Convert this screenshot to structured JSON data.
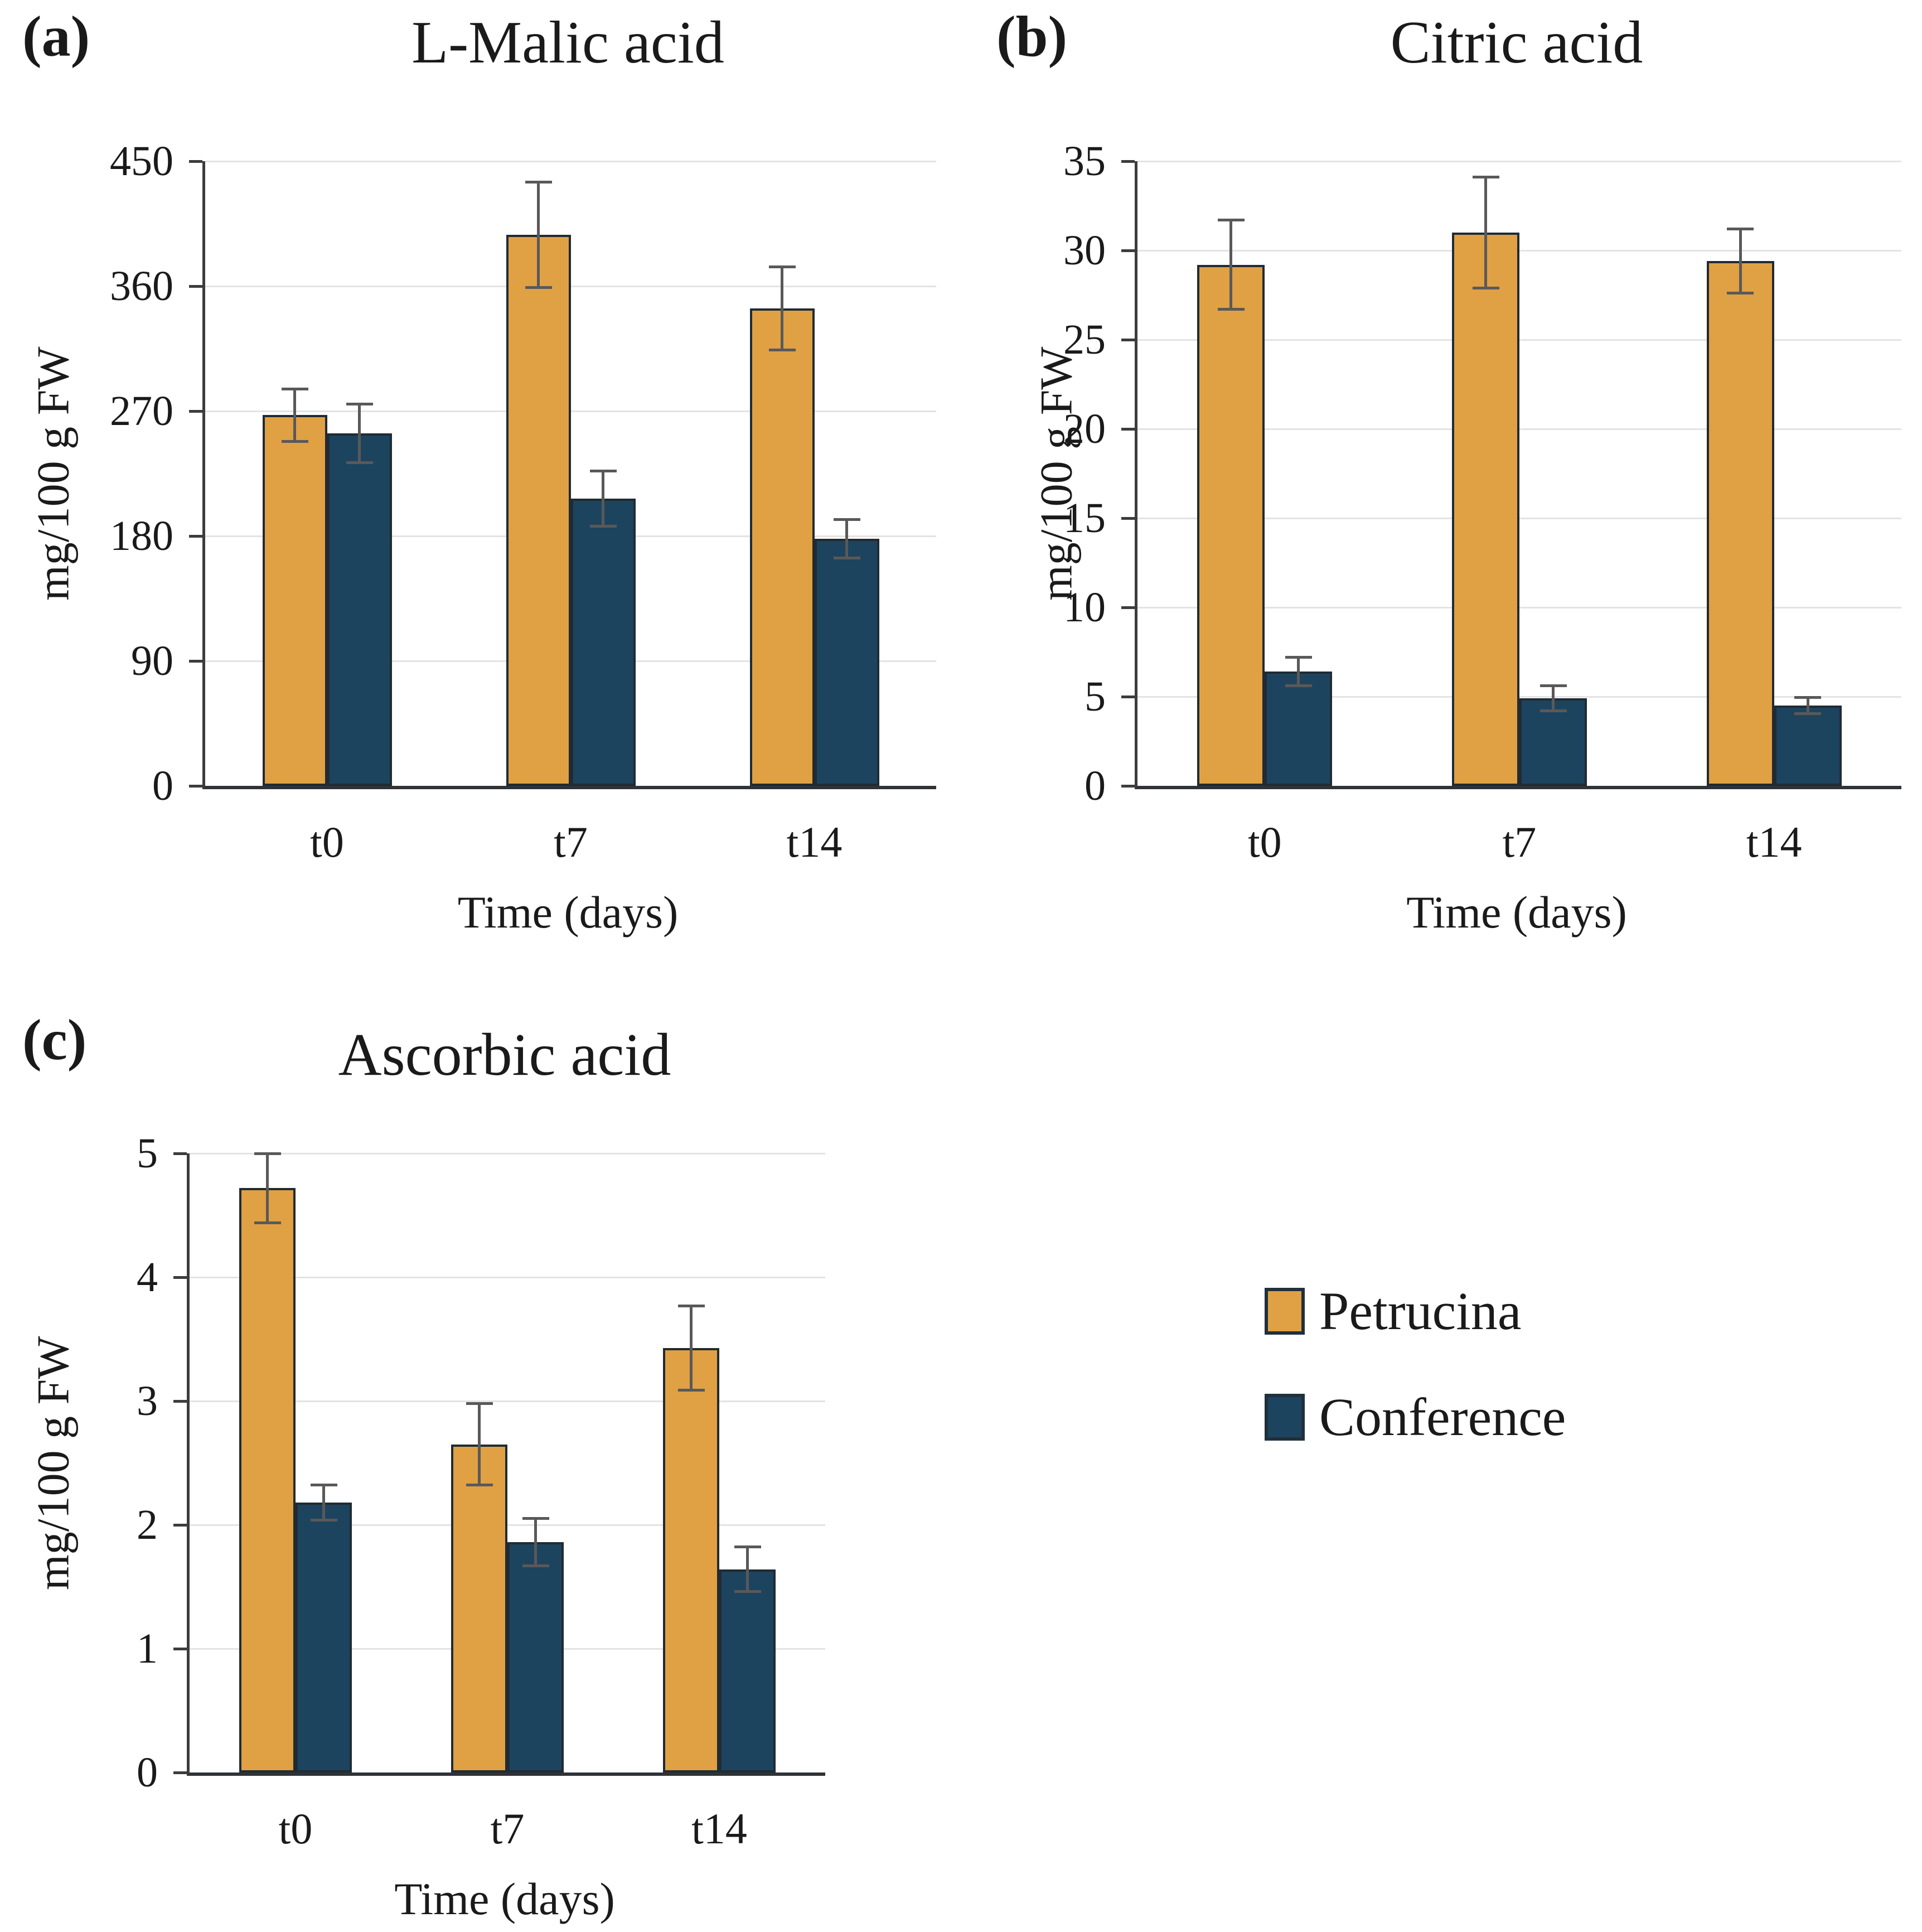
{
  "colors": {
    "petrucina": "#E0A044",
    "conference": "#1D445F",
    "bar_border": "#202B33",
    "gridline": "#E3E3E3",
    "axis": "#3C3C3C",
    "error_bar": "#595959",
    "text": "#1A1A1A"
  },
  "legend": {
    "position": "bottom-right",
    "items": [
      {
        "label": "Petrucina",
        "color": "#E0A044"
      },
      {
        "label": "Conference",
        "color": "#1D445F"
      }
    ]
  },
  "chart_data": [
    {
      "type": "bar",
      "panel_label": "(a)",
      "title": "L-Malic acid",
      "xlabel": "Time (days)",
      "ylabel": "mg/100 g FW",
      "categories": [
        "t0",
        "t7",
        "t14"
      ],
      "ylim": [
        0,
        450
      ],
      "yticks": [
        0,
        90,
        180,
        270,
        360,
        450
      ],
      "grid": true,
      "legend_position": "shared-bottom-right",
      "series": [
        {
          "name": "Petrucina",
          "color": "#E0A044",
          "values": [
            267,
            397,
            344
          ],
          "errors": [
            19,
            38,
            30
          ]
        },
        {
          "name": "Conference",
          "color": "#1D445F",
          "values": [
            254,
            207,
            178
          ],
          "errors": [
            21,
            20,
            14
          ]
        }
      ]
    },
    {
      "type": "bar",
      "panel_label": "(b)",
      "title": "Citric acid",
      "xlabel": "Time (days)",
      "ylabel": "mg/100 g FW",
      "categories": [
        "t0",
        "t7",
        "t14"
      ],
      "ylim": [
        0,
        35
      ],
      "yticks": [
        0,
        5,
        10,
        15,
        20,
        25,
        30,
        35
      ],
      "grid": true,
      "legend_position": "shared-bottom-right",
      "series": [
        {
          "name": "Petrucina",
          "color": "#E0A044",
          "values": [
            29.2,
            31.0,
            29.4
          ],
          "errors": [
            2.5,
            3.1,
            1.8
          ]
        },
        {
          "name": "Conference",
          "color": "#1D445F",
          "values": [
            6.4,
            4.9,
            4.5
          ],
          "errors": [
            0.8,
            0.7,
            0.45
          ]
        }
      ]
    },
    {
      "type": "bar",
      "panel_label": "(c)",
      "title": "Ascorbic acid",
      "xlabel": "Time (days)",
      "ylabel": "mg/100 g FW",
      "categories": [
        "t0",
        "t7",
        "t14"
      ],
      "ylim": [
        0,
        5
      ],
      "yticks": [
        0,
        1,
        2,
        3,
        4,
        5
      ],
      "grid": true,
      "legend_position": "shared-bottom-right",
      "series": [
        {
          "name": "Petrucina",
          "color": "#E0A044",
          "values": [
            4.72,
            2.65,
            3.43
          ],
          "errors": [
            0.28,
            0.33,
            0.34
          ]
        },
        {
          "name": "Conference",
          "color": "#1D445F",
          "values": [
            2.18,
            1.86,
            1.64
          ],
          "errors": [
            0.14,
            0.19,
            0.18
          ]
        }
      ]
    }
  ]
}
